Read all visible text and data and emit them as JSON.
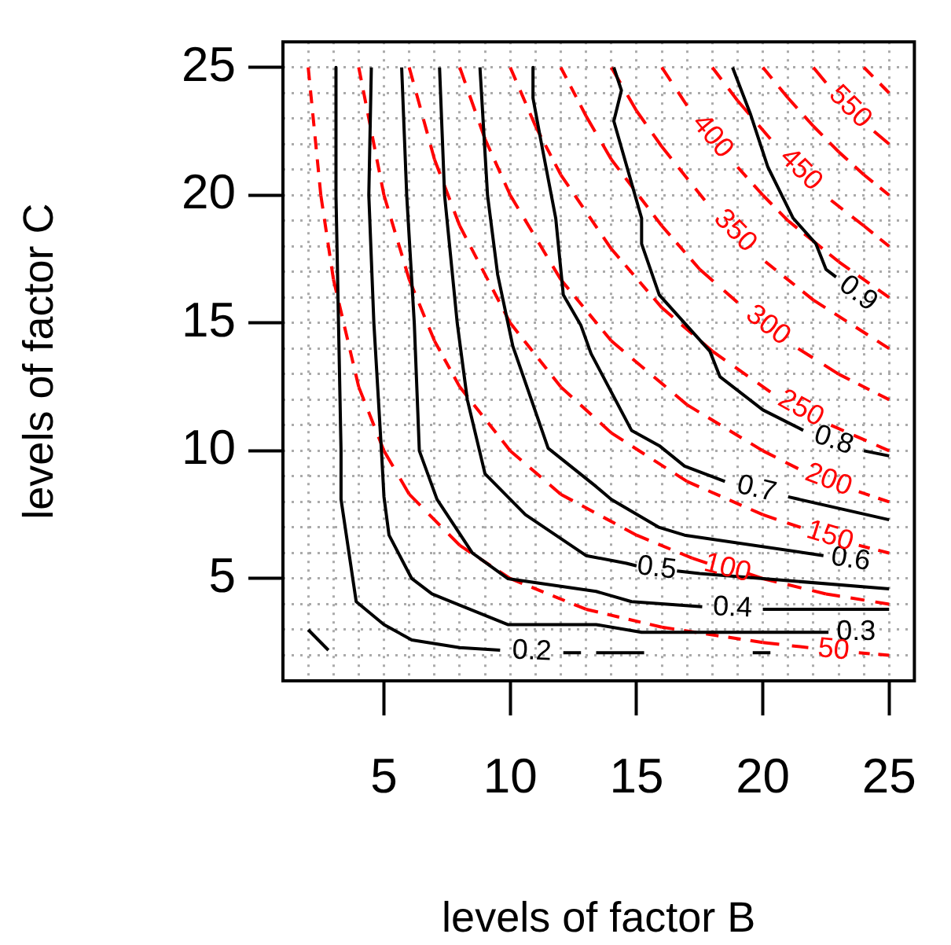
{
  "chart_data": {
    "type": "line",
    "xlabel": "levels of factor B",
    "ylabel": "levels of factor C",
    "xlim": [
      1,
      26
    ],
    "ylim": [
      1,
      26
    ],
    "xticks": [
      {
        "value": 2,
        "label": null
      },
      {
        "value": 3,
        "label": null
      },
      {
        "value": 4,
        "label": null
      },
      5,
      {
        "value": 6,
        "label": null
      },
      {
        "value": 7,
        "label": null
      },
      {
        "value": 8,
        "label": null
      },
      {
        "value": 9,
        "label": null
      },
      10,
      {
        "value": 11,
        "label": null
      },
      {
        "value": 12,
        "label": null
      },
      {
        "value": 13,
        "label": null
      },
      {
        "value": 14,
        "label": null
      },
      15,
      {
        "value": 16,
        "label": null
      },
      {
        "value": 17,
        "label": null
      },
      {
        "value": 18,
        "label": null
      },
      {
        "value": 19,
        "label": null
      },
      20,
      {
        "value": 21,
        "label": null
      },
      {
        "value": 22,
        "label": null
      },
      {
        "value": 23,
        "label": null
      },
      {
        "value": 24,
        "label": null
      },
      25
    ],
    "yticks": [
      {
        "value": 2,
        "label": null
      },
      {
        "value": 3,
        "label": null
      },
      {
        "value": 4,
        "label": null
      },
      5,
      {
        "value": 6,
        "label": null
      },
      {
        "value": 7,
        "label": null
      },
      {
        "value": 8,
        "label": null
      },
      {
        "value": 9,
        "label": null
      },
      10,
      {
        "value": 11,
        "label": null
      },
      {
        "value": 12,
        "label": null
      },
      {
        "value": 13,
        "label": null
      },
      {
        "value": 14,
        "label": null
      },
      15,
      {
        "value": 16,
        "label": null
      },
      {
        "value": 17,
        "label": null
      },
      {
        "value": 18,
        "label": null
      },
      {
        "value": 19,
        "label": null
      },
      20,
      {
        "value": 21,
        "label": null
      },
      {
        "value": 22,
        "label": null
      },
      {
        "value": 23,
        "label": null
      },
      {
        "value": 24,
        "label": null
      },
      25
    ],
    "grid": true,
    "marker": "none",
    "series": [
      {
        "name": "0.2",
        "color": "#000000",
        "line_style": "solid",
        "x": [
          3.1,
          3.1,
          3.2,
          3.3,
          3.3,
          3.9,
          5.0,
          6.1,
          8.0,
          9.6,
          null,
          12.1,
          12.8,
          null,
          13.4,
          15.3,
          null,
          19.6,
          20.3,
          null,
          2.0,
          2.8
        ],
        "values": [
          25,
          20,
          15,
          10,
          8.1,
          4.1,
          3.2,
          2.6,
          2.3,
          2.2,
          null,
          2.1,
          2.1,
          null,
          2.1,
          2.1,
          null,
          2.1,
          2.1,
          null,
          3.0,
          2.2
        ]
      },
      {
        "name": "0.3",
        "color": "#000000",
        "line_style": "solid",
        "x": [
          4.5,
          4.4,
          4.6,
          4.9,
          5.0,
          5.2,
          6.1,
          6.9,
          9.9,
          13.4,
          15.2,
          21.6,
          22.6
        ],
        "values": [
          25,
          20,
          15,
          10,
          8.2,
          6.7,
          5,
          4.4,
          3.2,
          3.2,
          2.9,
          2.9,
          2.9
        ]
      },
      {
        "name": "0.4",
        "color": "#000000",
        "line_style": "solid",
        "x": [
          5.7,
          5.9,
          6.2,
          6.4,
          7.1,
          8.5,
          9.9,
          13.4,
          14.8,
          17.6,
          null,
          20,
          25
        ],
        "values": [
          25,
          20,
          15,
          10,
          8.1,
          6,
          5,
          4.5,
          4.1,
          3.9,
          null,
          3.8,
          3.8
        ]
      },
      {
        "name": "0.5",
        "color": "#000000",
        "line_style": "solid",
        "x": [
          7.2,
          7.4,
          7.9,
          8.3,
          9.0,
          10.6,
          13,
          14.6,
          15.0,
          null,
          16.6,
          17.5,
          25
        ],
        "values": [
          25,
          20,
          15,
          12,
          9.1,
          7.5,
          5.9,
          5.6,
          5.5,
          null,
          5.3,
          5.2,
          4.6
        ]
      },
      {
        "name": "0.6",
        "color": "#000000",
        "line_style": "solid",
        "x": [
          8.8,
          9.1,
          9.5,
          10.1,
          11.5,
          13.4,
          14,
          15.9,
          16.9,
          22.4
        ],
        "values": [
          25,
          20,
          16.9,
          14.1,
          10.1,
          8.6,
          8.1,
          7,
          6.7,
          5.9
        ]
      },
      {
        "name": "0.7",
        "color": "#000000",
        "line_style": "solid",
        "x": [
          10.9,
          10.9,
          11.2,
          11.8,
          12.1,
          12.8,
          13.2,
          14.8,
          15.9,
          16.9,
          18.5,
          null,
          21,
          25
        ],
        "values": [
          25,
          23.8,
          22.2,
          19.1,
          16.1,
          14.9,
          13.8,
          10.8,
          10.2,
          9.4,
          8.8,
          null,
          8.2,
          7.3
        ]
      },
      {
        "name": "0.8",
        "color": "#000000",
        "line_style": "solid",
        "x": [
          14.1,
          14.4,
          14.1,
          15.2,
          15.2,
          15.9,
          17.9,
          18.3,
          20,
          21.6,
          null,
          24,
          25
        ],
        "values": [
          25,
          24.1,
          22.9,
          19.1,
          18.1,
          16.1,
          13.9,
          12.9,
          11.6,
          10.8,
          null,
          10,
          9.8
        ]
      },
      {
        "name": "0.9",
        "color": "#000000",
        "line_style": "solid",
        "x": [
          18.8,
          19.5,
          20.2,
          21.2,
          22.1,
          22.5,
          22.9
        ],
        "values": [
          25,
          23.2,
          21.1,
          19.1,
          18.1,
          17.1,
          16.8
        ]
      },
      {
        "name": "50",
        "color": "#ff0000",
        "line_style": "dashed",
        "x": [
          2,
          2.5,
          3,
          4,
          5,
          6,
          8,
          10,
          13,
          16,
          20,
          21.8,
          null,
          23.8,
          25
        ],
        "values": [
          25,
          20,
          16.7,
          12.5,
          10,
          8.3,
          6.3,
          5,
          3.8,
          3.1,
          2.5,
          2.3,
          null,
          2.1,
          2.0
        ]
      },
      {
        "name": "100",
        "color": "#ff0000",
        "line_style": "dashed",
        "x": [
          4,
          5,
          6,
          7,
          8,
          10,
          12,
          15,
          17.2,
          17.8,
          null,
          19.4,
          20,
          22.5,
          25
        ],
        "values": [
          25,
          20,
          16.7,
          14.3,
          12.5,
          10,
          8.3,
          6.7,
          5.8,
          5.6,
          null,
          5.2,
          5,
          4.4,
          4
        ]
      },
      {
        "name": "150",
        "color": "#ff0000",
        "line_style": "dashed",
        "x": [
          6,
          7,
          8,
          10,
          12,
          14,
          17,
          20,
          21.5,
          null,
          23.8,
          25
        ],
        "values": [
          25,
          21.4,
          18.8,
          15,
          12.5,
          10.7,
          8.8,
          7.5,
          7.0,
          null,
          6.3,
          6
        ]
      },
      {
        "name": "200",
        "color": "#ff0000",
        "line_style": "dashed",
        "x": [
          8,
          9,
          10,
          12,
          14,
          17,
          20,
          21.4,
          null,
          23.8,
          25
        ],
        "values": [
          25,
          22.2,
          20,
          16.7,
          14.3,
          11.8,
          10,
          9.3,
          null,
          8.4,
          8
        ]
      },
      {
        "name": "250",
        "color": "#ff0000",
        "line_style": "dashed",
        "x": [
          10,
          11,
          12,
          14,
          16,
          18,
          20.3,
          null,
          22.7,
          25
        ],
        "values": [
          25,
          22.7,
          20.8,
          17.9,
          15.6,
          13.9,
          12.3,
          null,
          11,
          10
        ]
      },
      {
        "name": "300",
        "color": "#ff0000",
        "line_style": "dashed",
        "x": [
          12,
          13,
          14,
          16,
          17.5,
          19,
          null,
          21.4,
          23,
          25
        ],
        "values": [
          25,
          23.1,
          21.4,
          18.8,
          17.1,
          15.8,
          null,
          14,
          13,
          12
        ]
      },
      {
        "name": "350",
        "color": "#ff0000",
        "line_style": "dashed",
        "x": [
          14,
          15,
          16,
          17.7,
          null,
          20.1,
          22,
          25
        ],
        "values": [
          25,
          23.3,
          21.9,
          19.8,
          null,
          17.4,
          15.9,
          14
        ]
      },
      {
        "name": "400",
        "color": "#ff0000",
        "line_style": "dashed",
        "x": [
          16,
          17,
          null,
          19,
          20,
          21,
          22,
          23,
          25
        ],
        "values": [
          25,
          23.5,
          null,
          21.1,
          20,
          19,
          18.2,
          17.4,
          16
        ]
      },
      {
        "name": "450",
        "color": "#ff0000",
        "line_style": "dashed",
        "x": [
          18,
          19,
          20.3,
          null,
          22.7,
          24,
          25
        ],
        "values": [
          25,
          23.7,
          22.2,
          null,
          19.8,
          18.8,
          18
        ]
      },
      {
        "color": "#ff0000",
        "line_style": "dashed",
        "x": [
          20,
          21,
          22,
          23,
          24,
          25
        ],
        "values": [
          25,
          23.8,
          22.7,
          21.7,
          20.8,
          20
        ]
      },
      {
        "name": "550",
        "color": "#ff0000",
        "line_style": "dashed",
        "x": [
          22,
          22.5,
          null,
          24.4,
          25
        ],
        "values": [
          25,
          24.4,
          null,
          22.5,
          22
        ]
      },
      {
        "color": "#ff0000",
        "line_style": "dashed",
        "x": [
          24,
          25
        ],
        "values": [
          25,
          24
        ]
      }
    ]
  }
}
